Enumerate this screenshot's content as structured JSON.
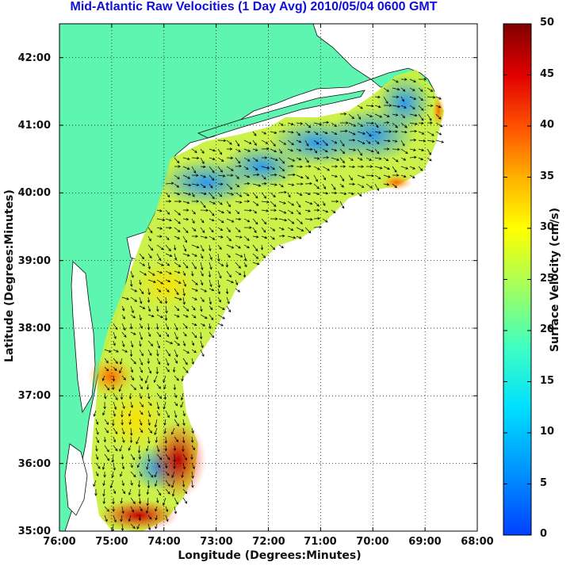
{
  "title": "Mid-Atlantic Raw Velocities (1 Day Avg) 2010/05/04 0600 GMT",
  "map": {
    "xlabel": "Longitude (Degrees:Minutes)",
    "ylabel": "Latitude (Degrees:Minutes)",
    "x_ticks": [
      "76:00",
      "75:00",
      "74:00",
      "73:00",
      "72:00",
      "71:00",
      "70:00",
      "69:00",
      "68:00"
    ],
    "y_ticks": [
      "42:00",
      "41:00",
      "40:00",
      "39:00",
      "38:00",
      "37:00",
      "36:00",
      "35:00"
    ],
    "lon_range": [
      -76,
      -68
    ],
    "lat_range": [
      35,
      42.5
    ],
    "land_color": "#5ef5b0",
    "grid": "dotted"
  },
  "colorbar": {
    "label": "Surface Velocity (cm/s)",
    "ticks": [
      "50",
      "45",
      "40",
      "35",
      "30",
      "25",
      "20",
      "15",
      "10",
      "5",
      "0"
    ],
    "range": [
      0,
      50
    ],
    "colormap": "jet"
  }
}
